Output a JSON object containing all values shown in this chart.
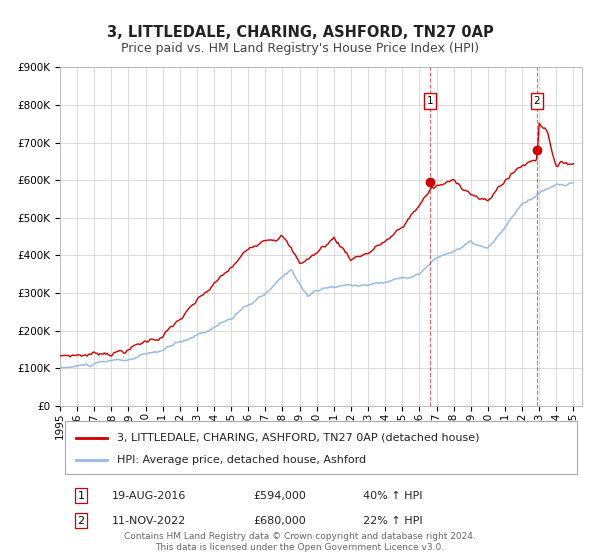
{
  "title": "3, LITTLEDALE, CHARING, ASHFORD, TN27 0AP",
  "subtitle": "Price paid vs. HM Land Registry's House Price Index (HPI)",
  "ylim": [
    0,
    900000
  ],
  "yticks": [
    0,
    100000,
    200000,
    300000,
    400000,
    500000,
    600000,
    700000,
    800000,
    900000
  ],
  "xlim_start": 1995.0,
  "xlim_end": 2025.5,
  "red_color": "#cc0000",
  "blue_color": "#99bbdd",
  "grid_color": "#cccccc",
  "bg_color": "#ffffff",
  "marker1_date_x": 2016.63,
  "marker1_y": 594000,
  "marker2_date_x": 2022.86,
  "marker2_y": 680000,
  "dashed_line1_x": 2016.63,
  "dashed_line2_x": 2022.86,
  "legend_line1": "3, LITTLEDALE, CHARING, ASHFORD, TN27 0AP (detached house)",
  "legend_line2": "HPI: Average price, detached house, Ashford",
  "note1_num": "1",
  "note1_date": "19-AUG-2016",
  "note1_price": "£594,000",
  "note1_hpi": "40% ↑ HPI",
  "note2_num": "2",
  "note2_date": "11-NOV-2022",
  "note2_price": "£680,000",
  "note2_hpi": "22% ↑ HPI",
  "footer": "Contains HM Land Registry data © Crown copyright and database right 2024.\nThis data is licensed under the Open Government Licence v3.0.",
  "title_fontsize": 10.5,
  "subtitle_fontsize": 9,
  "tick_fontsize": 7.5,
  "legend_fontsize": 8,
  "note_fontsize": 8,
  "footer_fontsize": 6.5
}
